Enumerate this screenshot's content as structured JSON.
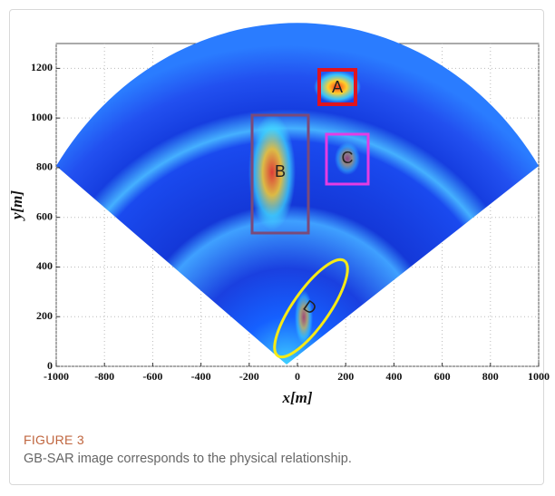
{
  "figure": {
    "label": "FIGURE 3",
    "caption": "GB-SAR image corresponds to the physical relationship."
  },
  "chart_data": {
    "type": "image",
    "xlabel": "x[m]",
    "ylabel": "y[m]",
    "xlim": [
      -1000,
      1000
    ],
    "ylim": [
      0,
      1300
    ],
    "xticks": [
      -1000,
      -800,
      -600,
      -400,
      -200,
      0,
      200,
      400,
      600,
      800,
      1000
    ],
    "yticks": [
      0,
      200,
      400,
      600,
      800,
      1000,
      1200
    ],
    "annotations": [
      "A",
      "B",
      "C",
      "D"
    ]
  }
}
